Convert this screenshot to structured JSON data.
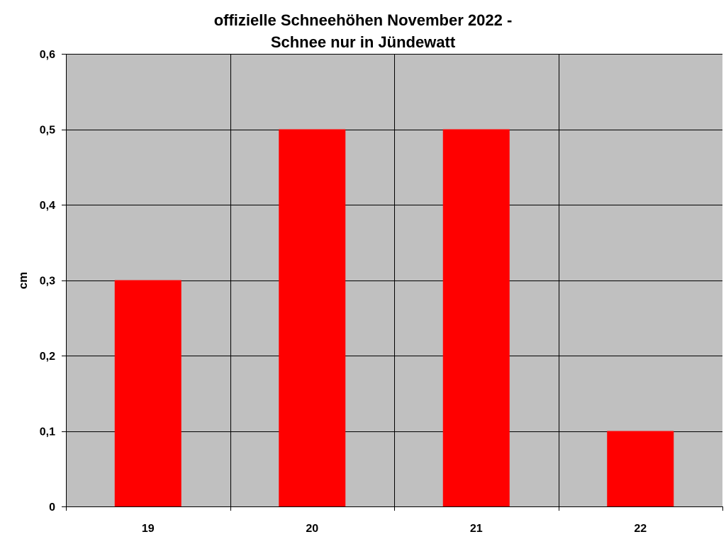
{
  "chart_data": {
    "type": "bar",
    "title_lines": [
      "offizielle Schneehöhen November 2022 -",
      "Schnee nur in Jündewatt"
    ],
    "categories": [
      "19",
      "20",
      "21",
      "22"
    ],
    "series": [
      {
        "values": [
          0.3,
          0.5,
          0.5,
          0.1
        ],
        "color": "#ff0000"
      }
    ],
    "xlabel": "",
    "ylabel": "cm",
    "ylim": [
      0,
      0.6
    ],
    "y_ticks": [
      0,
      0.1,
      0.2,
      0.3,
      0.4,
      0.5,
      0.6
    ],
    "y_tick_labels": [
      "0",
      "0,1",
      "0,2",
      "0,3",
      "0,4",
      "0,5",
      "0,6"
    ],
    "grid": true,
    "legend": "none",
    "plot_background": "#c0c0c0",
    "gridline_color": "#000000"
  }
}
